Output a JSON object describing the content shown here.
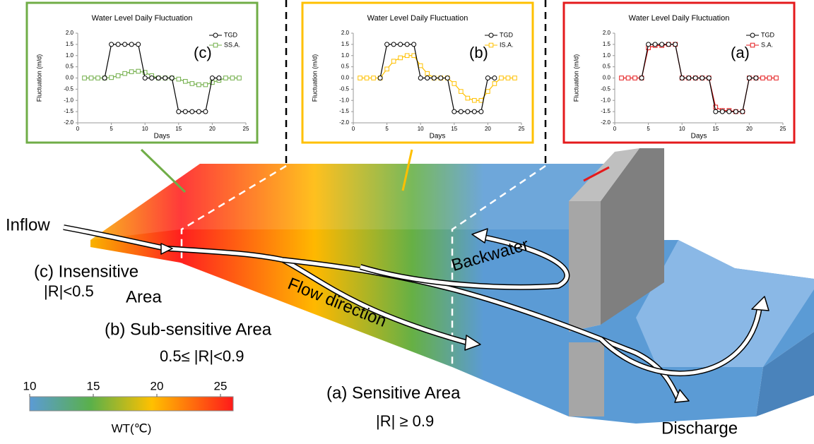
{
  "chart_data": [
    {
      "type": "line",
      "title": "Water Level Daily Fluctuation",
      "panel_label": "(c)",
      "xlabel": "Days",
      "ylabel": "Fluctuation (m/d)",
      "frame_color": "#70ad47",
      "xlim": [
        0,
        25
      ],
      "ylim": [
        -2,
        2
      ],
      "xticks": [
        0,
        5,
        10,
        15,
        20,
        25
      ],
      "yticks": [
        {
          "value": 2,
          "label": "2.0"
        },
        1.5,
        {
          "value": 1,
          "label": "1.0"
        },
        0.5,
        {
          "value": 0,
          "label": "0.0"
        },
        -0.5,
        {
          "value": -1,
          "label": "-1.0"
        },
        -1.5,
        {
          "value": -2,
          "label": "-2.0"
        }
      ],
      "series": [
        {
          "name": "TGD",
          "color": "#000000",
          "marker": "circle",
          "x": [
            4,
            5,
            6,
            7,
            8,
            9,
            10,
            11,
            12,
            13,
            14,
            15,
            16,
            17,
            18,
            19,
            20,
            21
          ],
          "values": [
            0,
            1.5,
            1.5,
            1.5,
            1.5,
            1.5,
            0,
            0,
            0,
            0,
            0,
            -1.5,
            -1.5,
            -1.5,
            -1.5,
            -1.5,
            0,
            0
          ]
        },
        {
          "name": "SS.A.",
          "color": "#70ad47",
          "marker": "square",
          "x": [
            1,
            2,
            3,
            4,
            5,
            6,
            7,
            8,
            9,
            10,
            11,
            12,
            13,
            14,
            15,
            16,
            17,
            18,
            19,
            20,
            21,
            22,
            23,
            24
          ],
          "values": [
            0,
            0,
            0,
            0,
            0.02,
            0.1,
            0.2,
            0.28,
            0.3,
            0.25,
            0.1,
            0,
            0,
            0,
            -0.05,
            -0.15,
            -0.25,
            -0.3,
            -0.3,
            -0.2,
            -0.1,
            0,
            0,
            0
          ]
        }
      ]
    },
    {
      "type": "line",
      "title": "Water Level Daily Fluctuation",
      "panel_label": "(b)",
      "xlabel": "Days",
      "ylabel": "Fluctuation (m/d)",
      "frame_color": "#ffc000",
      "xlim": [
        0,
        25
      ],
      "ylim": [
        -2,
        2
      ],
      "xticks": [
        0,
        5,
        10,
        15,
        20,
        25
      ],
      "yticks": [
        {
          "value": 2,
          "label": "2.0"
        },
        1.5,
        {
          "value": 1,
          "label": "1.0"
        },
        0.5,
        {
          "value": 0,
          "label": "0.0"
        },
        -0.5,
        {
          "value": -1,
          "label": "-1.0"
        },
        -1.5,
        {
          "value": -2,
          "label": "-2.0"
        }
      ],
      "series": [
        {
          "name": "TGD",
          "color": "#000000",
          "marker": "circle",
          "x": [
            4,
            5,
            6,
            7,
            8,
            9,
            10,
            11,
            12,
            13,
            14,
            15,
            16,
            17,
            18,
            19,
            20,
            21
          ],
          "values": [
            0,
            1.5,
            1.5,
            1.5,
            1.5,
            1.5,
            0,
            0,
            0,
            0,
            0,
            -1.5,
            -1.5,
            -1.5,
            -1.5,
            -1.5,
            0,
            0
          ]
        },
        {
          "name": "IS.A.",
          "color": "#ffc000",
          "marker": "square",
          "x": [
            1,
            2,
            3,
            4,
            5,
            6,
            7,
            8,
            9,
            10,
            11,
            12,
            13,
            14,
            15,
            16,
            17,
            18,
            19,
            20,
            21,
            22,
            23,
            24
          ],
          "values": [
            0,
            0,
            0,
            0,
            0.4,
            0.75,
            0.9,
            1,
            1,
            0.55,
            0.2,
            0,
            0,
            0,
            -0.25,
            -0.6,
            -0.9,
            -1,
            -1,
            -0.6,
            -0.25,
            0,
            0,
            0
          ]
        }
      ]
    },
    {
      "type": "line",
      "title": "Water Level Daily Fluctuation",
      "panel_label": "(a)",
      "xlabel": "Days",
      "ylabel": "Fluctuation (m/d)",
      "frame_color": "#e41a1c",
      "xlim": [
        0,
        25
      ],
      "ylim": [
        -2,
        2
      ],
      "xticks": [
        0,
        5,
        10,
        15,
        20,
        25
      ],
      "yticks": [
        {
          "value": 2,
          "label": "2.0"
        },
        1.5,
        {
          "value": 1,
          "label": "1.0"
        },
        0.5,
        {
          "value": 0,
          "label": "0.0"
        },
        -0.5,
        {
          "value": -1,
          "label": "-1.0"
        },
        -1.5,
        {
          "value": -2,
          "label": "-2.0"
        }
      ],
      "series": [
        {
          "name": "TGD",
          "color": "#000000",
          "marker": "circle",
          "x": [
            4,
            5,
            6,
            7,
            8,
            9,
            10,
            11,
            12,
            13,
            14,
            15,
            16,
            17,
            18,
            19,
            20,
            21
          ],
          "values": [
            0,
            1.5,
            1.5,
            1.5,
            1.5,
            1.5,
            0,
            0,
            0,
            0,
            0,
            -1.5,
            -1.5,
            -1.5,
            -1.5,
            -1.5,
            0,
            0
          ]
        },
        {
          "name": "S.A.",
          "color": "#e41a1c",
          "marker": "square",
          "x": [
            1,
            2,
            3,
            4,
            5,
            6,
            7,
            8,
            9,
            10,
            11,
            12,
            13,
            14,
            15,
            16,
            17,
            18,
            19,
            20,
            21,
            22,
            23,
            24
          ],
          "values": [
            0,
            0,
            0,
            0,
            1.35,
            1.45,
            1.45,
            1.5,
            1.5,
            0,
            0,
            0,
            0,
            0,
            -1.3,
            -1.45,
            -1.45,
            -1.5,
            -1.5,
            0,
            0,
            0,
            0,
            0
          ]
        }
      ]
    }
  ],
  "diagram": {
    "inflow": "Inflow",
    "insensitive": "(c) Insensitive",
    "insensitive_r": "|R|<0.5",
    "insensitive_area": "Area",
    "subsensitive": "(b) Sub-sensitive Area",
    "subsensitive_r": "0.5≤ |R|<0.9",
    "sensitive": "(a) Sensitive Area",
    "sensitive_r": "|R| ≥ 0.9",
    "backwater": "Backwater",
    "flow": "Flow direction",
    "discharge": "Discharge"
  },
  "colorbar": {
    "label": "WT(℃)",
    "lim": [
      10,
      26
    ],
    "ticks": [
      10,
      15,
      20,
      25
    ]
  }
}
